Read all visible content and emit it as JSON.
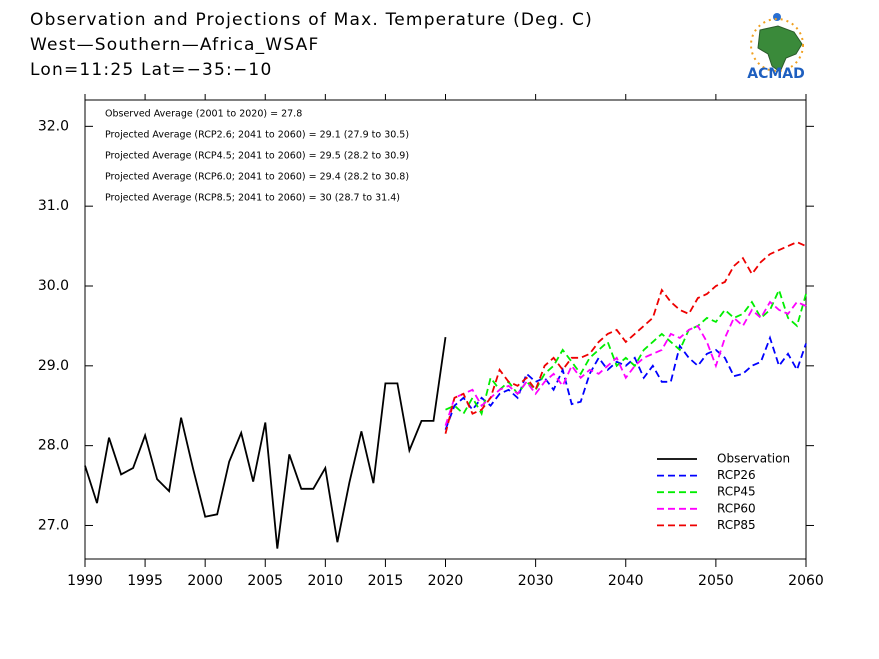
{
  "chart_data": {
    "type": "line",
    "title": "Observation and Projections of Max. Temperature (Deg. C)",
    "subtitle": [
      "West—Southern—Africa_WSAF",
      "Lon=11:25   Lat=−35:−10"
    ],
    "logo_text": "ACMAD",
    "annotations": [
      "Observed Average (2001 to 2020) = 27.8",
      "Projected Average (RCP2.6; 2041 to 2060) = 29.1 (27.9 to 30.5)",
      "Projected Average (RCP4.5; 2041 to 2060) = 29.5 (28.2 to 30.9)",
      "Projected Average (RCP6.0; 2041 to 2060) = 29.4 (28.2 to 30.8)",
      "Projected Average (RCP8.5; 2041 to 2060) = 30 (28.7 to 31.4)"
    ],
    "xlim": [
      1990,
      2060
    ],
    "xticks": [
      1990,
      1995,
      2000,
      2005,
      2010,
      2015,
      2020,
      2030,
      2040,
      2050,
      2060
    ],
    "ylim": [
      26.58,
      32.33
    ],
    "yticks": [
      {
        "value": 27,
        "label": "27.0"
      },
      {
        "value": 28,
        "label": "28.0"
      },
      {
        "value": 29,
        "label": "29.0"
      },
      {
        "value": 30,
        "label": "30.0"
      },
      {
        "value": 31,
        "label": "31.0"
      },
      {
        "value": 32,
        "label": "32.0"
      }
    ],
    "legend": "lower right",
    "series": [
      {
        "name": "Observation",
        "color": "#000000",
        "dashed": false,
        "x": [
          1990,
          1991,
          1992,
          1993,
          1994,
          1995,
          1996,
          1997,
          1998,
          1999,
          2000,
          2001,
          2002,
          2003,
          2004,
          2005,
          2006,
          2007,
          2008,
          2009,
          2010,
          2011,
          2012,
          2013,
          2014,
          2015,
          2016,
          2017,
          2018,
          2019,
          2020
        ],
        "values": [
          27.75,
          27.28,
          28.1,
          27.64,
          27.72,
          28.13,
          27.58,
          27.43,
          28.35,
          27.71,
          27.11,
          27.14,
          27.8,
          28.16,
          27.55,
          28.29,
          26.71,
          27.89,
          27.46,
          27.46,
          27.72,
          26.79,
          27.54,
          28.18,
          27.53,
          28.78,
          28.78,
          27.94,
          28.31,
          28.31,
          29.36
        ]
      },
      {
        "name": "RCP26",
        "color": "#0000ff",
        "dashed": true,
        "x": [
          2020,
          2021,
          2022,
          2023,
          2024,
          2025,
          2026,
          2027,
          2028,
          2029,
          2030,
          2031,
          2032,
          2033,
          2034,
          2035,
          2036,
          2037,
          2038,
          2039,
          2040,
          2041,
          2042,
          2043,
          2044,
          2045,
          2046,
          2047,
          2048,
          2049,
          2050,
          2051,
          2052,
          2053,
          2054,
          2055,
          2056,
          2057,
          2058,
          2059,
          2060
        ],
        "values": [
          28.2,
          28.5,
          28.6,
          28.45,
          28.6,
          28.5,
          28.65,
          28.7,
          28.6,
          28.9,
          28.8,
          28.85,
          28.7,
          28.95,
          28.52,
          28.55,
          28.9,
          29.1,
          28.95,
          29.05,
          29.0,
          29.1,
          28.85,
          29.0,
          28.8,
          28.8,
          29.25,
          29.1,
          29.0,
          29.15,
          29.2,
          29.1,
          28.87,
          28.9,
          29.0,
          29.05,
          29.35,
          29.0,
          29.15,
          28.95,
          29.28
        ]
      },
      {
        "name": "RCP45",
        "color": "#00ee00",
        "dashed": true,
        "x": [
          2020,
          2021,
          2022,
          2023,
          2024,
          2025,
          2026,
          2027,
          2028,
          2029,
          2030,
          2031,
          2032,
          2033,
          2034,
          2035,
          2036,
          2037,
          2038,
          2039,
          2040,
          2041,
          2042,
          2043,
          2044,
          2045,
          2046,
          2047,
          2048,
          2049,
          2050,
          2051,
          2052,
          2053,
          2054,
          2055,
          2056,
          2057,
          2058,
          2059,
          2060
        ],
        "values": [
          28.45,
          28.5,
          28.4,
          28.6,
          28.4,
          28.85,
          28.7,
          28.8,
          28.65,
          28.8,
          28.7,
          28.9,
          29.0,
          29.2,
          29.05,
          28.9,
          29.1,
          29.2,
          29.3,
          29.0,
          29.1,
          29.0,
          29.2,
          29.3,
          29.4,
          29.3,
          29.2,
          29.45,
          29.5,
          29.6,
          29.55,
          29.7,
          29.6,
          29.65,
          29.8,
          29.6,
          29.7,
          29.95,
          29.6,
          29.5,
          29.9
        ]
      },
      {
        "name": "RCP60",
        "color": "#ff00ff",
        "dashed": true,
        "x": [
          2020,
          2021,
          2022,
          2023,
          2024,
          2025,
          2026,
          2027,
          2028,
          2029,
          2030,
          2031,
          2032,
          2033,
          2034,
          2035,
          2036,
          2037,
          2038,
          2039,
          2040,
          2041,
          2042,
          2043,
          2044,
          2045,
          2046,
          2047,
          2048,
          2049,
          2050,
          2051,
          2052,
          2053,
          2054,
          2055,
          2056,
          2057,
          2058,
          2059,
          2060
        ],
        "values": [
          28.25,
          28.6,
          28.65,
          28.7,
          28.5,
          28.6,
          28.7,
          28.75,
          28.65,
          28.8,
          28.65,
          28.8,
          28.9,
          28.75,
          29.0,
          28.85,
          28.95,
          28.9,
          29.0,
          29.1,
          28.85,
          29.0,
          29.1,
          29.15,
          29.2,
          29.4,
          29.35,
          29.45,
          29.5,
          29.3,
          29.0,
          29.35,
          29.6,
          29.5,
          29.7,
          29.6,
          29.8,
          29.7,
          29.65,
          29.8,
          29.75
        ]
      },
      {
        "name": "RCP85",
        "color": "#ee0000",
        "dashed": true,
        "x": [
          2020,
          2021,
          2022,
          2023,
          2024,
          2025,
          2026,
          2027,
          2028,
          2029,
          2030,
          2031,
          2032,
          2033,
          2034,
          2035,
          2036,
          2037,
          2038,
          2039,
          2040,
          2041,
          2042,
          2043,
          2044,
          2045,
          2046,
          2047,
          2048,
          2049,
          2050,
          2051,
          2052,
          2053,
          2054,
          2055,
          2056,
          2057,
          2058,
          2059,
          2060
        ],
        "values": [
          28.15,
          28.6,
          28.65,
          28.4,
          28.45,
          28.6,
          28.95,
          28.8,
          28.75,
          28.85,
          28.7,
          29.0,
          29.1,
          28.95,
          29.1,
          29.1,
          29.15,
          29.3,
          29.4,
          29.45,
          29.3,
          29.4,
          29.5,
          29.6,
          29.95,
          29.8,
          29.7,
          29.65,
          29.85,
          29.9,
          30.0,
          30.05,
          30.25,
          30.35,
          30.15,
          30.3,
          30.4,
          30.45,
          30.5,
          30.55,
          30.5
        ]
      }
    ]
  }
}
